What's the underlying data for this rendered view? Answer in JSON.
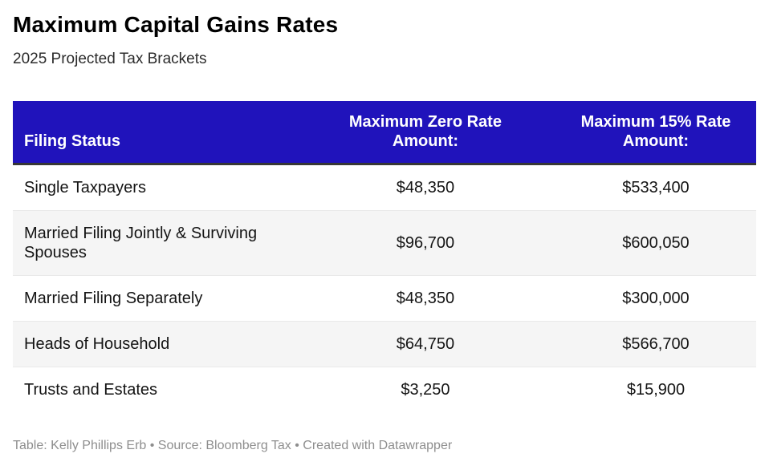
{
  "header": {
    "title": "Maximum Capital Gains Rates",
    "subtitle": "2025 Projected Tax Brackets"
  },
  "table": {
    "columns": [
      {
        "label": "Filing Status",
        "align": "left"
      },
      {
        "label": "Maximum Zero Rate Amount:",
        "align": "center"
      },
      {
        "label": "Maximum 15% Rate Amount:",
        "align": "center"
      }
    ],
    "rows": [
      {
        "filing_status": "Single Taxpayers",
        "zero_rate": "$48,350",
        "rate_15": "$533,400"
      },
      {
        "filing_status": "Married Filing Jointly & Surviving Spouses",
        "zero_rate": "$96,700",
        "rate_15": "$600,050"
      },
      {
        "filing_status": "Married Filing Separately",
        "zero_rate": "$48,350",
        "rate_15": "$300,000"
      },
      {
        "filing_status": "Heads of Household",
        "zero_rate": "$64,750",
        "rate_15": "$566,700"
      },
      {
        "filing_status": "Trusts and Estates",
        "zero_rate": "$3,250",
        "rate_15": "$15,900"
      }
    ]
  },
  "footer": {
    "credit": "Table: Kelly Phillips Erb • Source: Bloomberg Tax • Created with Datawrapper"
  },
  "colors": {
    "header_bg": "#2013bb",
    "header_text": "#ffffff",
    "header_border": "#363636",
    "stripe_bg": "#f5f5f5",
    "stripe_border": "#e9e9e9",
    "body_text": "#141414",
    "credit_text": "#8e8e8e"
  },
  "chart_data": {
    "type": "table",
    "title": "Maximum Capital Gains Rates",
    "subtitle": "2025 Projected Tax Brackets",
    "columns": [
      "Filing Status",
      "Maximum Zero Rate Amount:",
      "Maximum 15% Rate Amount:"
    ],
    "rows": [
      [
        "Single Taxpayers",
        "$48,350",
        "$533,400"
      ],
      [
        "Married Filing Jointly & Surviving Spouses",
        "$96,700",
        "$600,050"
      ],
      [
        "Married Filing Separately",
        "$48,350",
        "$300,000"
      ],
      [
        "Heads of Household",
        "$64,750",
        "$566,700"
      ],
      [
        "Trusts and Estates",
        "$3,250",
        "$15,900"
      ]
    ],
    "series": [
      {
        "name": "Maximum Zero Rate Amount",
        "values": [
          48350,
          96700,
          48350,
          64750,
          3250
        ]
      },
      {
        "name": "Maximum 15% Rate Amount",
        "values": [
          533400,
          600050,
          300000,
          566700,
          15900
        ]
      }
    ],
    "categories": [
      "Single Taxpayers",
      "Married Filing Jointly & Surviving Spouses",
      "Married Filing Separately",
      "Heads of Household",
      "Trusts and Estates"
    ],
    "legend_position": "none",
    "grid": false
  }
}
